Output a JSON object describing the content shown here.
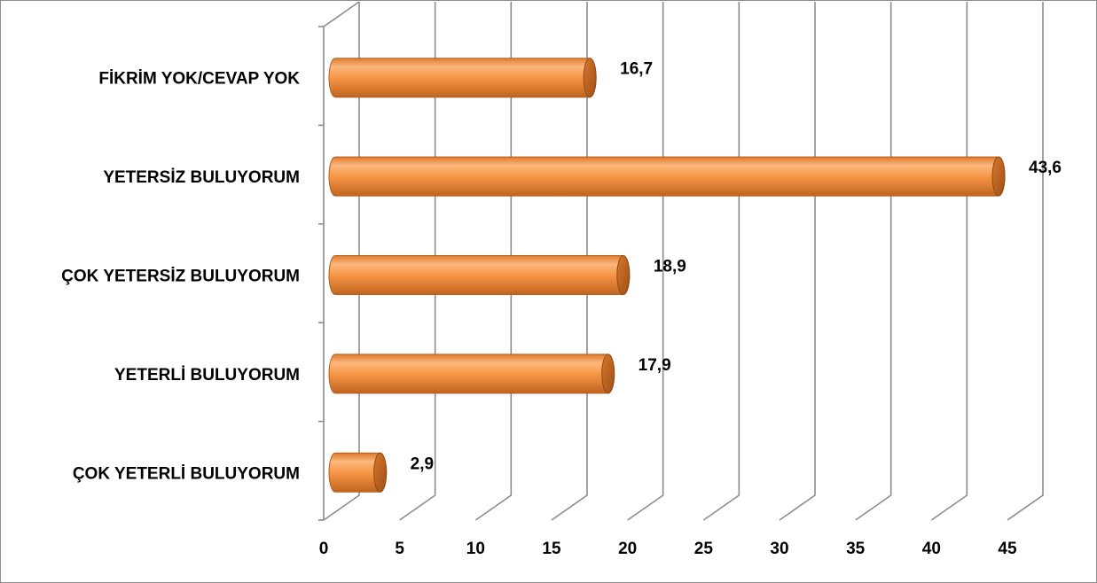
{
  "chart_data": {
    "type": "bar",
    "orientation": "horizontal",
    "style": "3d-cylinder",
    "categories": [
      "FİKRİM YOK/CEVAP YOK",
      "YETERSİZ BULUYORUM",
      "ÇOK YETERSİZ BULUYORUM",
      "YETERLİ BULUYORUM",
      "ÇOK YETERLİ BULUYORUM"
    ],
    "values": [
      16.7,
      43.6,
      18.9,
      17.9,
      2.9
    ],
    "data_labels": [
      "16,7",
      "43,6",
      "18,9",
      "17,9",
      "2,9"
    ],
    "xticks": [
      "0",
      "5",
      "10",
      "15",
      "20",
      "25",
      "30",
      "35",
      "40",
      "45"
    ],
    "xlim": [
      0,
      45
    ],
    "grid": true,
    "legend": "none",
    "colors": {
      "bar": "#f79646",
      "bar_light": "#fbb77d",
      "bar_dark": "#b8601f",
      "grid": "#8c8c8c"
    }
  }
}
